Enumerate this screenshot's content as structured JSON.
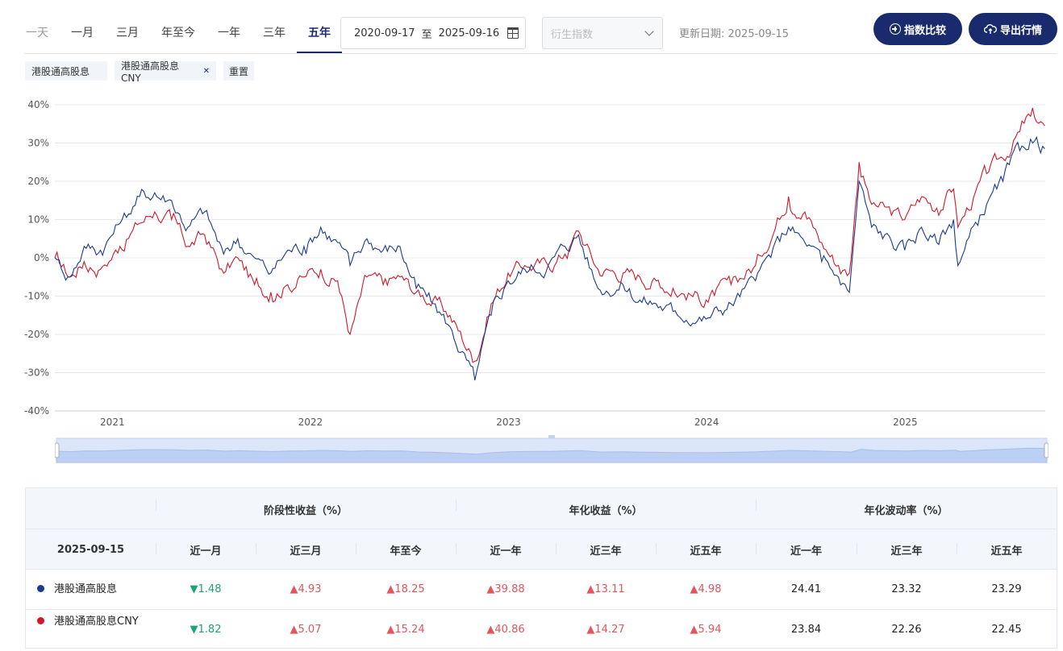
{
  "toolbar": {
    "periods": [
      "一天",
      "一月",
      "三月",
      "年至今",
      "一年",
      "三年",
      "五年"
    ],
    "active_period": "五年",
    "date_start": "2020-09-17",
    "date_sep": "至",
    "date_end": "2025-09-16",
    "derived_placeholder": "衍生指数",
    "update_label": "更新日期: 2025-09-15",
    "compare_button": "指数比较",
    "export_button": "导出行情"
  },
  "tags": {
    "tag1": "港股通高股息",
    "tag2": "港股通高股息CNY",
    "reset": "重置"
  },
  "colors": {
    "series_blue": "#1a3a8c",
    "series_red": "#d0182a",
    "accent": "#1a2b6d"
  },
  "chart_data": {
    "type": "line",
    "y_tick_labels": [
      "40%",
      "30%",
      "20%",
      "10%",
      "0%",
      "-10%",
      "-20%",
      "-30%",
      "-40%"
    ],
    "ylim": [
      -40,
      40
    ],
    "x_tick_labels": [
      "2021",
      "2022",
      "2023",
      "2024",
      "2025"
    ],
    "xlim": [
      "2020-09-17",
      "2025-09-16"
    ],
    "grid": true,
    "series": [
      {
        "name": "港股通高股息",
        "color": "#1a3a8c",
        "points": [
          [
            "2020-09-17",
            0
          ],
          [
            "2020-10-15",
            -5
          ],
          [
            "2020-11-10",
            3
          ],
          [
            "2020-12-10",
            2
          ],
          [
            "2021-01-15",
            9
          ],
          [
            "2021-02-20",
            16
          ],
          [
            "2021-03-20",
            17
          ],
          [
            "2021-04-20",
            15
          ],
          [
            "2021-05-20",
            8
          ],
          [
            "2021-06-20",
            12
          ],
          [
            "2021-07-25",
            1
          ],
          [
            "2021-08-20",
            5
          ],
          [
            "2021-09-20",
            0
          ],
          [
            "2021-10-20",
            -4
          ],
          [
            "2021-11-20",
            2
          ],
          [
            "2021-12-20",
            3
          ],
          [
            "2022-01-20",
            8
          ],
          [
            "2022-02-20",
            4
          ],
          [
            "2022-03-15",
            -2
          ],
          [
            "2022-04-15",
            5
          ],
          [
            "2022-05-15",
            2
          ],
          [
            "2022-06-15",
            3
          ],
          [
            "2022-07-15",
            -8
          ],
          [
            "2022-08-15",
            -12
          ],
          [
            "2022-09-15",
            -18
          ],
          [
            "2022-10-31",
            -32
          ],
          [
            "2022-11-30",
            -15
          ],
          [
            "2022-12-31",
            -6
          ],
          [
            "2023-01-31",
            -3
          ],
          [
            "2023-03-15",
            -2
          ],
          [
            "2023-04-15",
            3
          ],
          [
            "2023-05-10",
            6
          ],
          [
            "2023-06-15",
            -8
          ],
          [
            "2023-07-31",
            -7
          ],
          [
            "2023-08-31",
            -11
          ],
          [
            "2023-09-30",
            -12
          ],
          [
            "2023-10-31",
            -14
          ],
          [
            "2023-12-31",
            -16
          ],
          [
            "2024-02-15",
            -12
          ],
          [
            "2024-03-31",
            -6
          ],
          [
            "2024-05-31",
            8
          ],
          [
            "2024-06-30",
            4
          ],
          [
            "2024-07-31",
            -1
          ],
          [
            "2024-08-31",
            -5
          ],
          [
            "2024-09-20",
            -9
          ],
          [
            "2024-10-08",
            20
          ],
          [
            "2024-10-31",
            8
          ],
          [
            "2024-12-31",
            2
          ],
          [
            "2025-01-31",
            8
          ],
          [
            "2025-02-28",
            4
          ],
          [
            "2025-03-31",
            10
          ],
          [
            "2025-04-08",
            -2
          ],
          [
            "2025-05-31",
            14
          ],
          [
            "2025-06-30",
            20
          ],
          [
            "2025-07-31",
            28
          ],
          [
            "2025-08-20",
            31
          ],
          [
            "2025-09-15",
            28.5
          ]
        ]
      },
      {
        "name": "港股通高股息CNY",
        "color": "#d0182a",
        "points": [
          [
            "2020-09-17",
            0
          ],
          [
            "2020-10-15",
            -5
          ],
          [
            "2020-11-10",
            -1
          ],
          [
            "2020-12-10",
            -3
          ],
          [
            "2021-01-15",
            3
          ],
          [
            "2021-02-20",
            9
          ],
          [
            "2021-03-20",
            12
          ],
          [
            "2021-04-20",
            10
          ],
          [
            "2021-05-20",
            3
          ],
          [
            "2021-06-20",
            6
          ],
          [
            "2021-07-25",
            -4
          ],
          [
            "2021-08-20",
            0
          ],
          [
            "2021-09-20",
            -7
          ],
          [
            "2021-10-20",
            -9
          ],
          [
            "2021-11-20",
            -7
          ],
          [
            "2021-12-20",
            -5
          ],
          [
            "2022-01-20",
            -3
          ],
          [
            "2022-02-20",
            -6
          ],
          [
            "2022-03-15",
            -20
          ],
          [
            "2022-04-15",
            -5
          ],
          [
            "2022-05-15",
            -7
          ],
          [
            "2022-06-15",
            -5
          ],
          [
            "2022-07-15",
            -9
          ],
          [
            "2022-08-15",
            -11
          ],
          [
            "2022-09-15",
            -15
          ],
          [
            "2022-10-31",
            -27
          ],
          [
            "2022-11-30",
            -12
          ],
          [
            "2022-12-31",
            -4
          ],
          [
            "2023-01-31",
            -2
          ],
          [
            "2023-03-15",
            -2
          ],
          [
            "2023-04-15",
            1
          ],
          [
            "2023-05-10",
            7
          ],
          [
            "2023-06-15",
            -3
          ],
          [
            "2023-07-31",
            -4
          ],
          [
            "2023-08-31",
            -5
          ],
          [
            "2023-09-30",
            -6
          ],
          [
            "2023-10-31",
            -8
          ],
          [
            "2023-12-31",
            -11
          ],
          [
            "2024-02-15",
            -7
          ],
          [
            "2024-03-31",
            -2
          ],
          [
            "2024-05-31",
            16
          ],
          [
            "2024-06-30",
            12
          ],
          [
            "2024-07-31",
            4
          ],
          [
            "2024-08-31",
            -2
          ],
          [
            "2024-09-20",
            -4
          ],
          [
            "2024-10-08",
            25
          ],
          [
            "2024-10-31",
            14
          ],
          [
            "2024-12-31",
            10
          ],
          [
            "2025-01-31",
            16
          ],
          [
            "2025-02-28",
            13
          ],
          [
            "2025-03-31",
            18
          ],
          [
            "2025-04-08",
            8
          ],
          [
            "2025-05-31",
            22
          ],
          [
            "2025-06-30",
            26
          ],
          [
            "2025-07-31",
            33
          ],
          [
            "2025-08-20",
            37
          ],
          [
            "2025-09-15",
            34.5
          ]
        ]
      }
    ]
  },
  "table": {
    "groups": [
      "阶段性收益（%）",
      "年化收益（%）",
      "年化波动率（%）"
    ],
    "date": "2025-09-15",
    "columns": [
      "近一月",
      "近三月",
      "年至今",
      "近一年",
      "近三年",
      "近五年",
      "近一年",
      "近三年",
      "近五年"
    ],
    "rows": [
      {
        "name": "港股通高股息",
        "dot_color": "#1a3a8c",
        "values": [
          "▼1.48",
          "▲4.93",
          "▲18.25",
          "▲39.88",
          "▲13.11",
          "▲4.98",
          "24.41",
          "23.32",
          "23.29"
        ],
        "trend": [
          "down",
          "up",
          "up",
          "up",
          "up",
          "up",
          "none",
          "none",
          "none"
        ]
      },
      {
        "name": "港股通高股息CNY",
        "dot_color": "#d0182a",
        "values": [
          "▼1.82",
          "▲5.07",
          "▲15.24",
          "▲40.86",
          "▲14.27",
          "▲5.94",
          "23.84",
          "22.26",
          "22.45"
        ],
        "trend": [
          "down",
          "up",
          "up",
          "up",
          "up",
          "up",
          "none",
          "none",
          "none"
        ]
      }
    ]
  }
}
